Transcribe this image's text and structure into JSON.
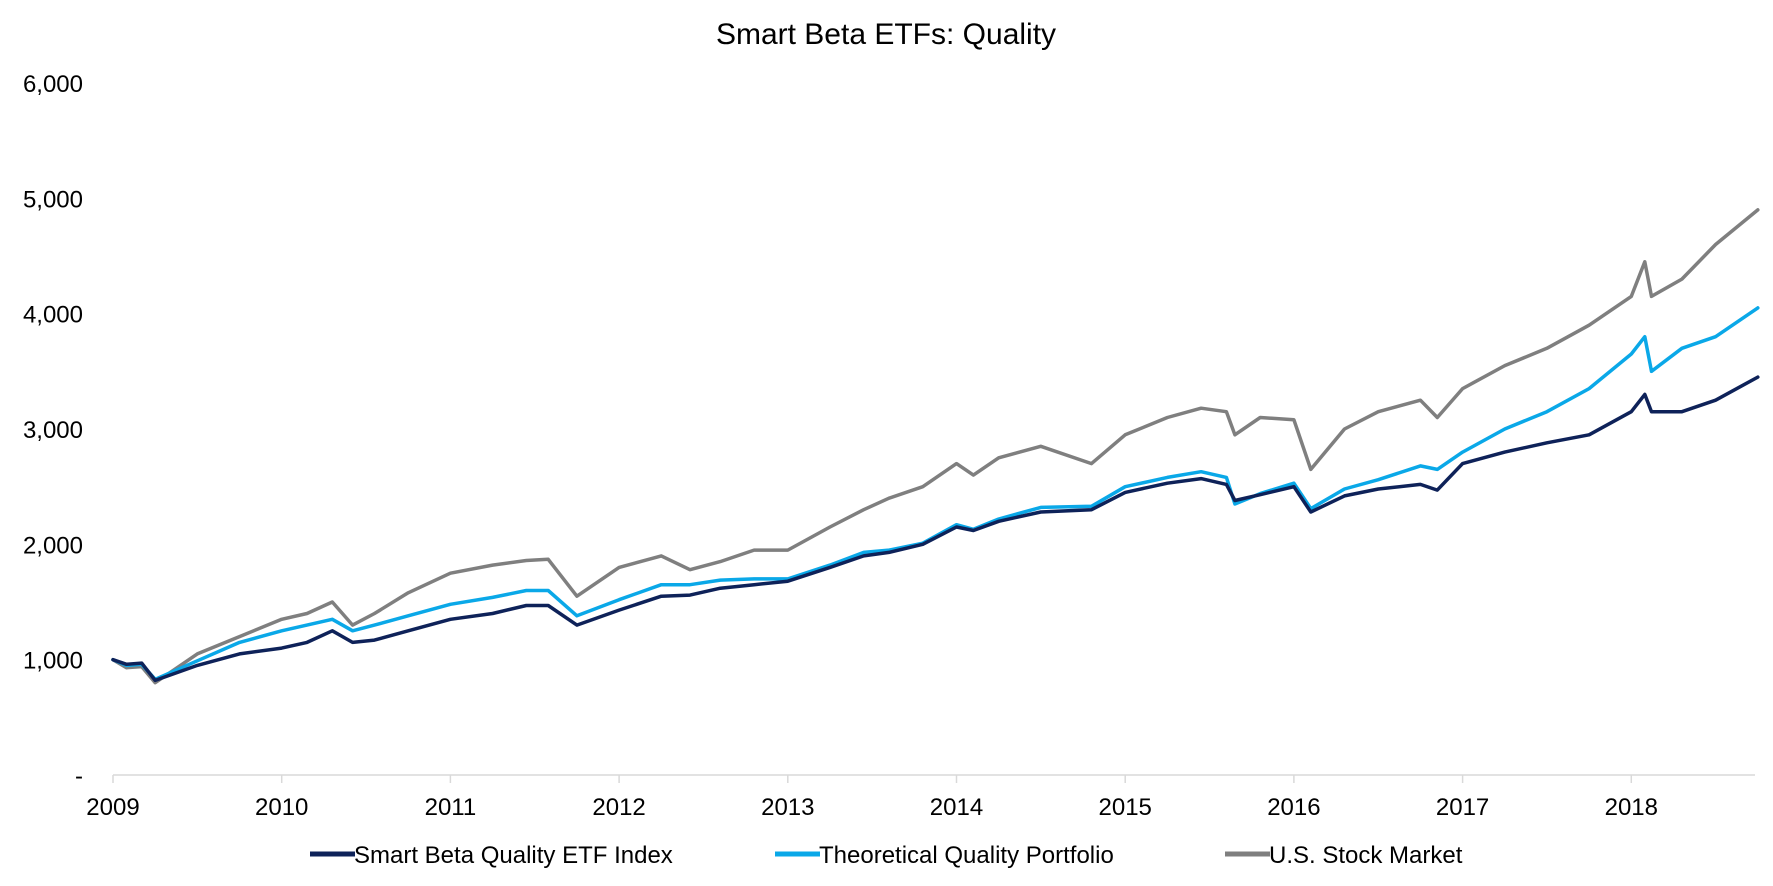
{
  "chart_data": {
    "type": "line",
    "title": "Smart Beta ETFs: Quality",
    "xlabel": "",
    "ylabel": "",
    "x_tick_labels": [
      "2009",
      "2010",
      "2011",
      "2012",
      "2013",
      "2014",
      "2015",
      "2016",
      "2017",
      "2018"
    ],
    "x_range": [
      2009.0,
      2018.75
    ],
    "y_tick_labels": [
      "-",
      "1,000",
      "2,000",
      "3,000",
      "4,000",
      "5,000",
      "6,000"
    ],
    "ylim": [
      0,
      6000
    ],
    "grid": false,
    "legend_position": "bottom",
    "x": [
      2009.0,
      2009.08,
      2009.17,
      2009.25,
      2009.5,
      2009.75,
      2010.0,
      2010.15,
      2010.3,
      2010.42,
      2010.55,
      2010.75,
      2011.0,
      2011.25,
      2011.45,
      2011.58,
      2011.75,
      2012.0,
      2012.25,
      2012.42,
      2012.6,
      2012.8,
      2013.0,
      2013.25,
      2013.45,
      2013.6,
      2013.8,
      2014.0,
      2014.1,
      2014.25,
      2014.5,
      2014.8,
      2015.0,
      2015.25,
      2015.45,
      2015.6,
      2015.65,
      2015.8,
      2016.0,
      2016.1,
      2016.3,
      2016.5,
      2016.75,
      2016.85,
      2017.0,
      2017.25,
      2017.5,
      2017.75,
      2018.0,
      2018.08,
      2018.12,
      2018.3,
      2018.5,
      2018.75
    ],
    "series": [
      {
        "name": "Smart Beta Quality ETF Index",
        "color": "#0e2259",
        "values": [
          1000,
          960,
          970,
          820,
          950,
          1050,
          1100,
          1150,
          1250,
          1150,
          1170,
          1250,
          1350,
          1400,
          1470,
          1470,
          1300,
          1430,
          1550,
          1560,
          1620,
          1650,
          1680,
          1800,
          1900,
          1930,
          2000,
          2150,
          2120,
          2200,
          2280,
          2300,
          2450,
          2530,
          2570,
          2520,
          2380,
          2430,
          2500,
          2280,
          2420,
          2480,
          2520,
          2470,
          2700,
          2800,
          2880,
          2950,
          3150,
          3300,
          3150,
          3150,
          3250,
          3450
        ]
      },
      {
        "name": "Theoretical Quality Portfolio",
        "color": "#0aa8e8",
        "values": [
          1000,
          950,
          960,
          830,
          990,
          1150,
          1250,
          1300,
          1350,
          1250,
          1300,
          1380,
          1480,
          1540,
          1600,
          1600,
          1380,
          1520,
          1650,
          1650,
          1690,
          1700,
          1700,
          1820,
          1930,
          1950,
          2010,
          2170,
          2130,
          2220,
          2320,
          2330,
          2500,
          2580,
          2630,
          2580,
          2350,
          2440,
          2530,
          2310,
          2480,
          2560,
          2680,
          2650,
          2800,
          3000,
          3150,
          3350,
          3650,
          3800,
          3500,
          3700,
          3800,
          4050
        ]
      },
      {
        "name": "U.S. Stock Market",
        "color": "#7f7f7f",
        "values": [
          1000,
          930,
          940,
          800,
          1050,
          1200,
          1350,
          1400,
          1500,
          1300,
          1400,
          1580,
          1750,
          1820,
          1860,
          1870,
          1550,
          1800,
          1900,
          1780,
          1850,
          1950,
          1950,
          2150,
          2300,
          2400,
          2500,
          2700,
          2600,
          2750,
          2850,
          2700,
          2950,
          3100,
          3180,
          3150,
          2950,
          3100,
          3080,
          2650,
          3000,
          3150,
          3250,
          3100,
          3350,
          3550,
          3700,
          3900,
          4150,
          4450,
          4150,
          4300,
          4600,
          4900
        ]
      }
    ]
  }
}
